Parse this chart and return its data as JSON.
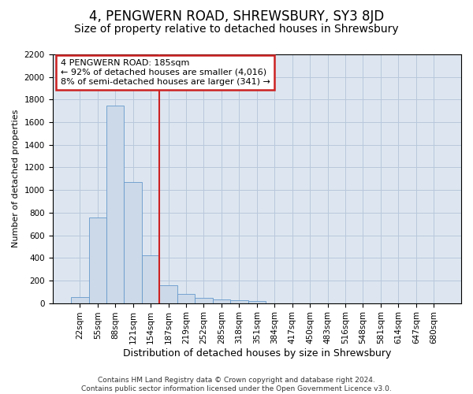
{
  "title": "4, PENGWERN ROAD, SHREWSBURY, SY3 8JD",
  "subtitle": "Size of property relative to detached houses in Shrewsbury",
  "xlabel": "Distribution of detached houses by size in Shrewsbury",
  "ylabel": "Number of detached properties",
  "footer_line1": "Contains HM Land Registry data © Crown copyright and database right 2024.",
  "footer_line2": "Contains public sector information licensed under the Open Government Licence v3.0.",
  "annotation_line1": "4 PENGWERN ROAD: 185sqm",
  "annotation_line2": "← 92% of detached houses are smaller (4,016)",
  "annotation_line3": "8% of semi-detached houses are larger (341) →",
  "bar_labels": [
    "22sqm",
    "55sqm",
    "88sqm",
    "121sqm",
    "154sqm",
    "187sqm",
    "219sqm",
    "252sqm",
    "285sqm",
    "318sqm",
    "351sqm",
    "384sqm",
    "417sqm",
    "450sqm",
    "483sqm",
    "516sqm",
    "548sqm",
    "581sqm",
    "614sqm",
    "647sqm",
    "680sqm"
  ],
  "bar_values": [
    50,
    760,
    1750,
    1070,
    420,
    155,
    80,
    48,
    35,
    27,
    20,
    0,
    0,
    0,
    0,
    0,
    0,
    0,
    0,
    0,
    0
  ],
  "bar_color": "#ccd9e8",
  "bar_edge_color": "#6699cc",
  "vline_color": "#cc2222",
  "vline_x_index": 5,
  "ylim": [
    0,
    2200
  ],
  "yticks": [
    0,
    200,
    400,
    600,
    800,
    1000,
    1200,
    1400,
    1600,
    1800,
    2000,
    2200
  ],
  "bg_color": "#ffffff",
  "axes_bg_color": "#dde6f0",
  "grid_color": "#b8c8dc",
  "annotation_box_facecolor": "#ffffff",
  "annotation_box_edgecolor": "#cc2222",
  "title_fontsize": 12,
  "subtitle_fontsize": 10,
  "footer_fontsize": 6.5,
  "ylabel_fontsize": 8,
  "xlabel_fontsize": 9,
  "tick_fontsize": 7.5,
  "annot_fontsize": 8
}
